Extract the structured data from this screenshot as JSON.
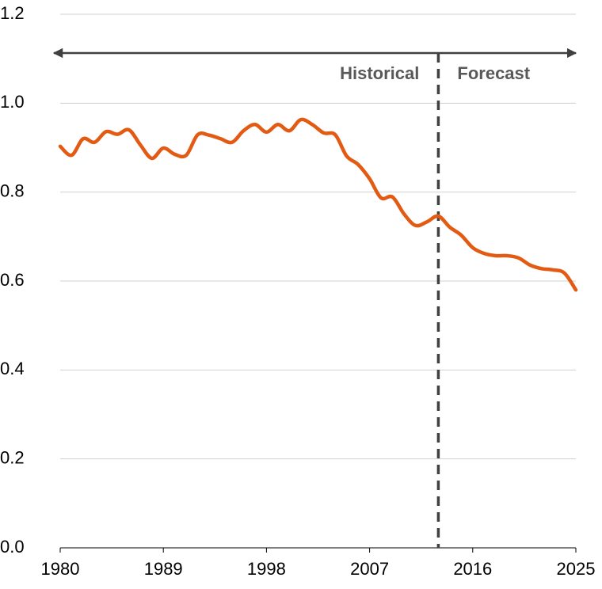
{
  "chart_data": {
    "type": "line",
    "x": [
      1980,
      1981,
      1982,
      1983,
      1984,
      1985,
      1986,
      1987,
      1988,
      1989,
      1990,
      1991,
      1992,
      1993,
      1994,
      1995,
      1996,
      1997,
      1998,
      1999,
      2000,
      2001,
      2002,
      2003,
      2004,
      2005,
      2006,
      2007,
      2008,
      2009,
      2010,
      2011,
      2012,
      2013,
      2014,
      2015,
      2016,
      2017,
      2018,
      2019,
      2020,
      2021,
      2022,
      2023,
      2024,
      2025
    ],
    "series": [
      {
        "color": "#e35a12",
        "values": [
          0.903,
          0.883,
          0.92,
          0.912,
          0.936,
          0.93,
          0.94,
          0.906,
          0.876,
          0.899,
          0.885,
          0.883,
          0.929,
          0.928,
          0.92,
          0.912,
          0.938,
          0.952,
          0.935,
          0.952,
          0.938,
          0.963,
          0.952,
          0.933,
          0.929,
          0.881,
          0.862,
          0.83,
          0.787,
          0.789,
          0.751,
          0.725,
          0.733,
          0.746,
          0.721,
          0.703,
          0.675,
          0.662,
          0.657,
          0.657,
          0.652,
          0.636,
          0.628,
          0.625,
          0.618,
          0.58
        ]
      }
    ],
    "xlim": [
      1980,
      2025
    ],
    "xticks": [
      1980,
      1989,
      1998,
      2007,
      2016,
      2025
    ],
    "ylim": [
      0,
      1.2
    ],
    "yticks": [
      {
        "value": 0,
        "label": "0.0"
      },
      0.2,
      0.4,
      0.6,
      0.8,
      {
        "value": 1,
        "label": "1.0"
      },
      1.2
    ],
    "grid": true,
    "annotations": [
      "Historical",
      "Forecast"
    ],
    "vline": 2013
  }
}
